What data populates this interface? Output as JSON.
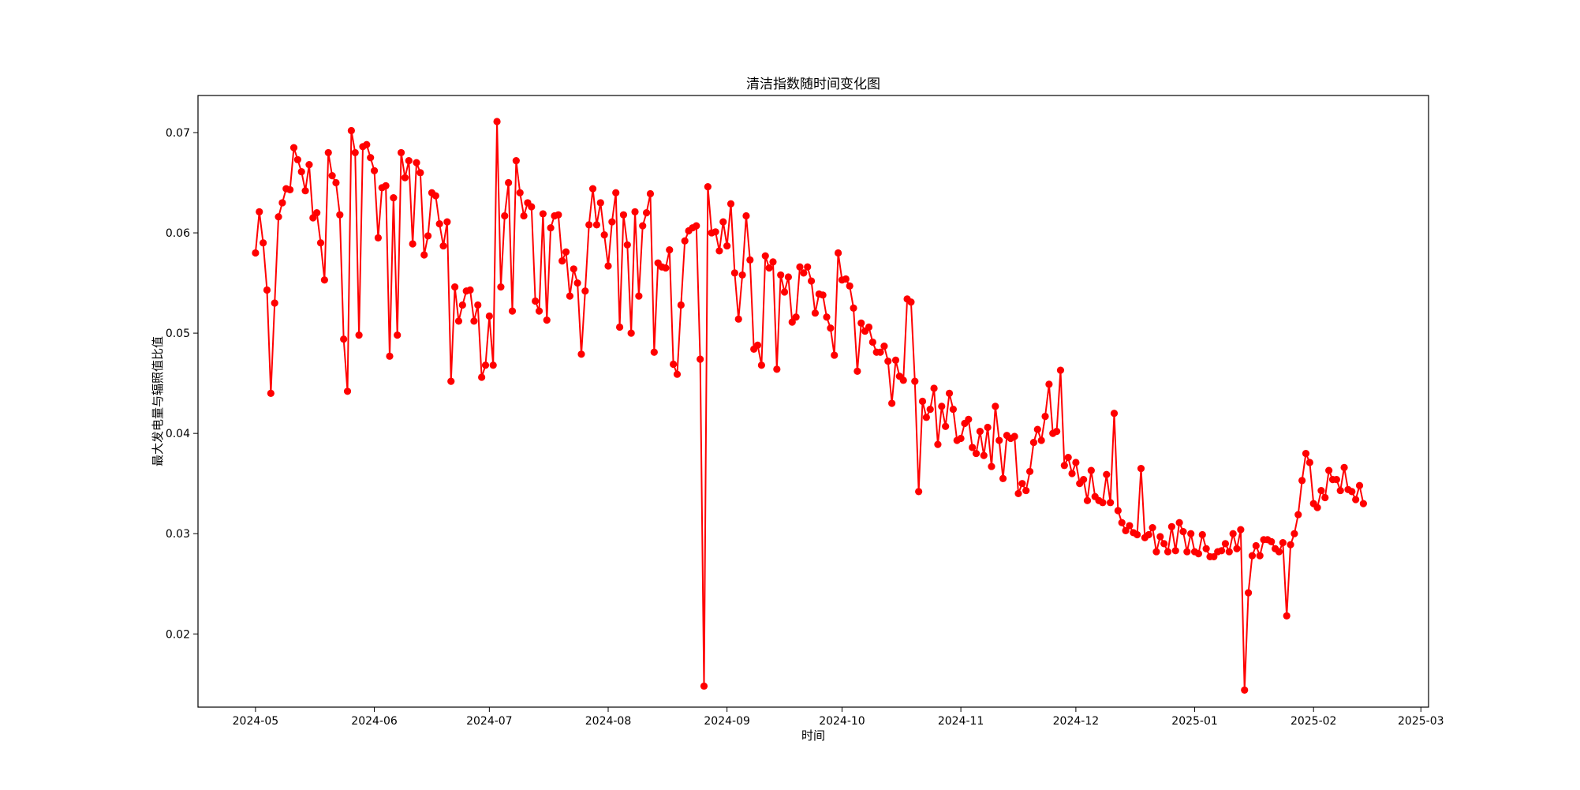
{
  "chart_data": {
    "type": "line",
    "title": "清洁指数随时间变化图",
    "xlabel": "时间",
    "ylabel": "最大发电量与辐照值比值",
    "x_type": "date",
    "xlim": [
      "2024-04-16",
      "2025-03-03"
    ],
    "ylim": [
      0.0127,
      0.0737
    ],
    "x_ticks": [
      "2024-05",
      "2024-06",
      "2024-07",
      "2024-08",
      "2024-09",
      "2024-10",
      "2024-11",
      "2024-12",
      "2025-01",
      "2025-02",
      "2025-03"
    ],
    "x_tick_dates": [
      "2024-05-01",
      "2024-06-01",
      "2024-07-01",
      "2024-08-01",
      "2024-09-01",
      "2024-10-01",
      "2024-11-01",
      "2024-12-01",
      "2025-01-01",
      "2025-02-01",
      "2025-03-01"
    ],
    "y_ticks": [
      0.02,
      0.03,
      0.04,
      0.05,
      0.06,
      0.07
    ],
    "y_tick_labels": [
      "0.02",
      "0.03",
      "0.04",
      "0.05",
      "0.06",
      "0.07"
    ],
    "grid": false,
    "legend": "none",
    "colors": {
      "series": "#ff0000",
      "axes": "#000000",
      "background": "#ffffff"
    },
    "marker": "circle",
    "series": [
      {
        "start_date": "2024-05-01",
        "step_days": 1,
        "values": [
          0.058,
          0.0621,
          0.059,
          0.0543,
          0.044,
          0.053,
          0.0616,
          0.063,
          0.0644,
          0.0643,
          0.0685,
          0.0673,
          0.0661,
          0.0642,
          0.0668,
          0.0615,
          0.062,
          0.059,
          0.0553,
          0.068,
          0.0657,
          0.065,
          0.0618,
          0.0494,
          0.0442,
          0.0702,
          0.068,
          0.0498,
          0.0686,
          0.0688,
          0.0675,
          0.0662,
          0.0595,
          0.0645,
          0.0647,
          0.0477,
          0.0635,
          0.0498,
          0.068,
          0.0655,
          0.0672,
          0.0589,
          0.067,
          0.066,
          0.0578,
          0.0597,
          0.064,
          0.0637,
          0.0609,
          0.0587,
          0.0611,
          0.0452,
          0.0546,
          0.0512,
          0.0528,
          0.0542,
          0.0543,
          0.0512,
          0.0528,
          0.0456,
          0.0468,
          0.0517,
          0.0468,
          0.0711,
          0.0546,
          0.0617,
          0.065,
          0.0522,
          0.0672,
          0.064,
          0.0617,
          0.063,
          0.0626,
          0.0532,
          0.0522,
          0.0619,
          0.0513,
          0.0605,
          0.0617,
          0.0618,
          0.0572,
          0.0581,
          0.0537,
          0.0564,
          0.055,
          0.0479,
          0.0542,
          0.0608,
          0.0644,
          0.0608,
          0.063,
          0.0598,
          0.0567,
          0.0611,
          0.064,
          0.0506,
          0.0618,
          0.0588,
          0.05,
          0.0621,
          0.0537,
          0.0607,
          0.062,
          0.0639,
          0.0481,
          0.057,
          0.0566,
          0.0565,
          0.0583,
          0.0469,
          0.0459,
          0.0528,
          0.0592,
          0.0602,
          0.0605,
          0.0607,
          0.0474,
          0.0148,
          0.0646,
          0.06,
          0.0601,
          0.0582,
          0.0611,
          0.0587,
          0.0629,
          0.056,
          0.0514,
          0.0558,
          0.0617,
          0.0573,
          0.0484,
          0.0488,
          0.0468,
          0.0577,
          0.0565,
          0.0571,
          0.0464,
          0.0558,
          0.0541,
          0.0556,
          0.0511,
          0.0516,
          0.0566,
          0.056,
          0.0566,
          0.0552,
          0.052,
          0.0539,
          0.0538,
          0.0516,
          0.0505,
          0.0478,
          0.058,
          0.0553,
          0.0554,
          0.0547,
          0.0525,
          0.0462,
          0.051,
          0.0502,
          0.0506,
          0.0491,
          0.0481,
          0.0481,
          0.0487,
          0.0472,
          0.043,
          0.0473,
          0.0457,
          0.0453,
          0.0534,
          0.0531,
          0.0452,
          0.0342,
          0.0432,
          0.0416,
          0.0424,
          0.0445,
          0.0389,
          0.0427,
          0.0407,
          0.044,
          0.0424,
          0.0393,
          0.0395,
          0.041,
          0.0414,
          0.0386,
          0.038,
          0.0402,
          0.0378,
          0.0406,
          0.0367,
          0.0427,
          0.0393,
          0.0355,
          0.0398,
          0.0395,
          0.0397,
          0.034,
          0.035,
          0.0343,
          0.0362,
          0.0391,
          0.0404,
          0.0393,
          0.0417,
          0.0449,
          0.04,
          0.0402,
          0.0463,
          0.0368,
          0.0376,
          0.036,
          0.0371,
          0.035,
          0.0354,
          0.0333,
          0.0363,
          0.0337,
          0.0333,
          0.0331,
          0.0359,
          0.0331,
          0.042,
          0.0323,
          0.0311,
          0.0303,
          0.0308,
          0.0301,
          0.0299,
          0.0365,
          0.0296,
          0.0299,
          0.0306,
          0.0282,
          0.0297,
          0.029,
          0.0282,
          0.0307,
          0.0283,
          0.0311,
          0.0302,
          0.0282,
          0.03,
          0.0282,
          0.028,
          0.0299,
          0.0285,
          0.0277,
          0.0277,
          0.0282,
          0.0283,
          0.029,
          0.0282,
          0.03,
          0.0285,
          0.0304,
          0.0144,
          0.0241,
          0.0278,
          0.0288,
          0.0278,
          0.0294,
          0.0294,
          0.0292,
          0.0285,
          0.0282,
          0.0291,
          0.0218,
          0.0289,
          0.03,
          0.0319,
          0.0353,
          0.038,
          0.0371,
          0.033,
          0.0326,
          0.0343,
          0.0336,
          0.0363,
          0.0354,
          0.0354,
          0.0343,
          0.0366,
          0.0344,
          0.0342,
          0.0334,
          0.0348,
          0.033
        ]
      }
    ]
  }
}
